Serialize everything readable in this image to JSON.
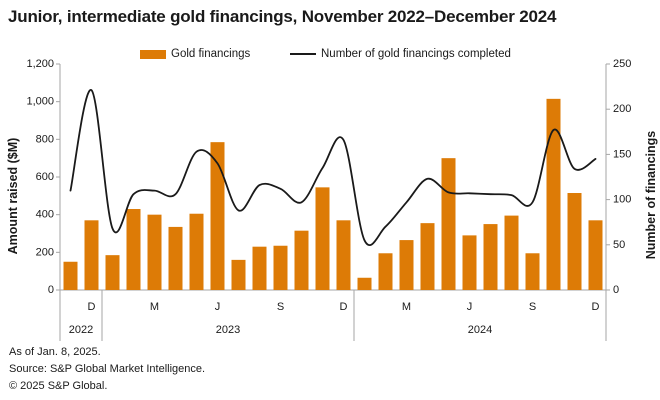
{
  "title": "Junior, intermediate gold financings, November 2022–December 2024",
  "legend": {
    "bar_label": "Gold financings",
    "line_label": "Number of gold financings completed"
  },
  "footer": {
    "as_of": "As of Jan. 8, 2025.",
    "source": "Source: S&P Global Market Intelligence.",
    "copyright": "© 2025 S&P Global."
  },
  "colors": {
    "bar": "#DD7B06",
    "line": "#1a1a1a",
    "axis": "#a6a6a6",
    "text": "#1a1a1a"
  },
  "chart_data": {
    "type": "bar",
    "subtype": "combo-bar-line",
    "categories": [
      "Nov 2022",
      "Dec 2022",
      "Jan 2023",
      "Feb 2023",
      "Mar 2023",
      "Apr 2023",
      "May 2023",
      "Jun 2023",
      "Jul 2023",
      "Aug 2023",
      "Sep 2023",
      "Oct 2023",
      "Nov 2023",
      "Dec 2023",
      "Jan 2024",
      "Feb 2024",
      "Mar 2024",
      "Apr 2024",
      "May 2024",
      "Jun 2024",
      "Jul 2024",
      "Aug 2024",
      "Sep 2024",
      "Oct 2024",
      "Nov 2024",
      "Dec 2024"
    ],
    "series": [
      {
        "name": "Gold financings",
        "type": "bar",
        "axis": "left",
        "values": [
          150,
          370,
          185,
          430,
          400,
          335,
          405,
          785,
          160,
          230,
          235,
          315,
          545,
          370,
          65,
          195,
          265,
          355,
          700,
          290,
          350,
          395,
          195,
          1015,
          515,
          370
        ]
      },
      {
        "name": "Number of gold financings completed",
        "type": "line",
        "axis": "right",
        "values": [
          110,
          221,
          68,
          106,
          110,
          106,
          153,
          140,
          88,
          116,
          112,
          97,
          135,
          166,
          55,
          70,
          97,
          123,
          108,
          107,
          106,
          105,
          97,
          177,
          134,
          145
        ]
      }
    ],
    "left_axis": {
      "label": "Amount raised ($M)",
      "min": 0,
      "max": 1200,
      "step": 200,
      "tick_labels": [
        "0",
        "200",
        "400",
        "600",
        "800",
        "1,000",
        "1,200"
      ]
    },
    "right_axis": {
      "label": "Number of financings",
      "min": 0,
      "max": 250,
      "step": 50,
      "tick_labels": [
        "0",
        "50",
        "100",
        "150",
        "200",
        "250"
      ]
    },
    "x_axis": {
      "month_ticks": [
        {
          "index": 1,
          "label": "D"
        },
        {
          "index": 4,
          "label": "M"
        },
        {
          "index": 7,
          "label": "J"
        },
        {
          "index": 10,
          "label": "S"
        },
        {
          "index": 13,
          "label": "D"
        },
        {
          "index": 16,
          "label": "M"
        },
        {
          "index": 19,
          "label": "J"
        },
        {
          "index": 22,
          "label": "S"
        },
        {
          "index": 25,
          "label": "D"
        }
      ],
      "year_groups": [
        {
          "label": "2022",
          "start": 0,
          "end": 1
        },
        {
          "label": "2023",
          "start": 2,
          "end": 13
        },
        {
          "label": "2024",
          "start": 14,
          "end": 25
        }
      ]
    },
    "grid": false,
    "legend_position": "top"
  }
}
